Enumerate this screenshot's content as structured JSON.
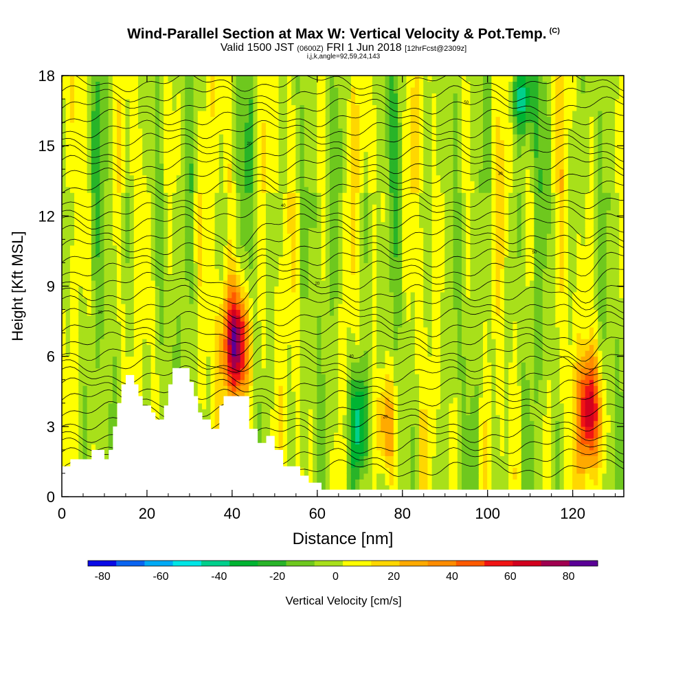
{
  "title": {
    "main": "Wind-Parallel Section at Max W: Vertical Velocity & Pot.Temp.",
    "corner": "(C)",
    "valid_a": "Valid 1500 JST",
    "valid_b": "(0600Z)",
    "valid_c": "FRI 1 Jun 2018",
    "valid_d": "[12hrFcst@2309z]",
    "params": "i,j,k,angle=92,59,24,143"
  },
  "chart_data": {
    "type": "heatmap",
    "xlabel": "Distance [nm]",
    "ylabel": "Height [Kft MSL]",
    "xlim": [
      0,
      132
    ],
    "ylim": [
      0,
      18
    ],
    "xticks": [
      "0",
      "20",
      "40",
      "60",
      "80",
      "100",
      "120"
    ],
    "yticks": [
      "0",
      "3",
      "6",
      "9",
      "12",
      "15",
      "18"
    ],
    "colorbar": {
      "label": "Vertical Velocity [cm/s]",
      "ticks": [
        "-80",
        "-60",
        "-40",
        "-20",
        "0",
        "20",
        "40",
        "60",
        "80"
      ],
      "range": [
        -85,
        90
      ],
      "colors": [
        "#0a0ae6",
        "#0a64f0",
        "#00aaf5",
        "#00e6e6",
        "#00d08c",
        "#00b432",
        "#28b428",
        "#6ec81e",
        "#a8e01a",
        "#ffff00",
        "#ffd700",
        "#ffaa00",
        "#ff8c00",
        "#ff5a00",
        "#f01414",
        "#d2001e",
        "#a00050",
        "#5a0096"
      ]
    },
    "terrain_profile": [
      [
        0,
        1.3
      ],
      [
        2,
        1.3
      ],
      [
        2,
        1.6
      ],
      [
        7,
        1.6
      ],
      [
        7,
        2.0
      ],
      [
        10,
        2.0
      ],
      [
        10,
        1.6
      ],
      [
        11,
        1.6
      ],
      [
        11,
        2.0
      ],
      [
        12,
        2.0
      ],
      [
        12,
        3.0
      ],
      [
        13,
        3.0
      ],
      [
        13,
        4.0
      ],
      [
        14,
        4.0
      ],
      [
        14,
        4.8
      ],
      [
        15,
        4.8
      ],
      [
        15,
        5.2
      ],
      [
        17,
        5.2
      ],
      [
        17,
        4.8
      ],
      [
        18,
        4.8
      ],
      [
        18,
        4.3
      ],
      [
        19,
        4.3
      ],
      [
        19,
        3.9
      ],
      [
        21,
        3.9
      ],
      [
        21,
        3.6
      ],
      [
        22,
        3.6
      ],
      [
        22,
        3.3
      ],
      [
        24,
        3.3
      ],
      [
        24,
        3.9
      ],
      [
        25,
        3.9
      ],
      [
        25,
        4.8
      ],
      [
        26,
        4.8
      ],
      [
        26,
        5.5
      ],
      [
        30,
        5.5
      ],
      [
        30,
        4.9
      ],
      [
        31,
        4.9
      ],
      [
        31,
        4.3
      ],
      [
        32,
        4.3
      ],
      [
        32,
        3.6
      ],
      [
        33,
        3.6
      ],
      [
        33,
        3.3
      ],
      [
        35,
        3.3
      ],
      [
        35,
        2.9
      ],
      [
        37,
        2.9
      ],
      [
        37,
        3.9
      ],
      [
        38,
        3.9
      ],
      [
        38,
        4.3
      ],
      [
        44,
        4.3
      ],
      [
        44,
        2.9
      ],
      [
        46,
        2.9
      ],
      [
        46,
        2.3
      ],
      [
        48,
        2.3
      ],
      [
        48,
        2.6
      ],
      [
        50,
        2.6
      ],
      [
        50,
        2.0
      ],
      [
        52,
        2.0
      ],
      [
        52,
        1.3
      ],
      [
        56,
        1.3
      ],
      [
        56,
        0.9
      ],
      [
        58,
        0.9
      ],
      [
        58,
        0.6
      ],
      [
        61,
        0.6
      ],
      [
        61,
        0.3
      ],
      [
        132,
        0.3
      ]
    ],
    "updraft_cores": [
      {
        "x": 41,
        "y_center": 6.5,
        "half_width_nm": 3,
        "half_height": 2.4,
        "peak_cm_s": 88
      },
      {
        "x": 124,
        "y_center": 3.6,
        "half_width_nm": 2.5,
        "half_height": 2.5,
        "peak_cm_s": 75
      },
      {
        "x": 70,
        "y_center": 3.0,
        "half_width_nm": 2.2,
        "half_height": 2.6,
        "peak_cm_s": -50
      },
      {
        "x": 76,
        "y_center": 3.0,
        "half_width_nm": 2.2,
        "half_height": 2.4,
        "peak_cm_s": 40
      },
      {
        "x": 108,
        "y_center": 17.0,
        "half_width_nm": 2.5,
        "half_height": 1.5,
        "peak_cm_s": -40
      }
    ],
    "isentrope_labels": [
      "20",
      "30",
      "40",
      "50"
    ]
  }
}
